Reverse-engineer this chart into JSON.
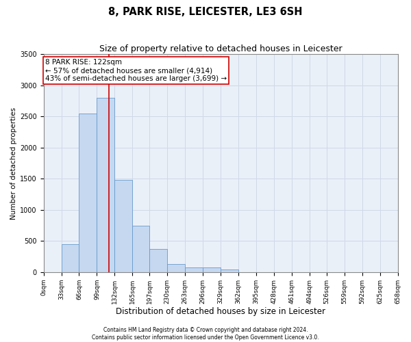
{
  "title1": "8, PARK RISE, LEICESTER, LE3 6SH",
  "title2": "Size of property relative to detached houses in Leicester",
  "xlabel": "Distribution of detached houses by size in Leicester",
  "ylabel": "Number of detached properties",
  "footnote1": "Contains HM Land Registry data © Crown copyright and database right 2024.",
  "footnote2": "Contains public sector information licensed under the Open Government Licence v3.0.",
  "bin_labels": [
    "0sqm",
    "33sqm",
    "66sqm",
    "99sqm",
    "132sqm",
    "165sqm",
    "197sqm",
    "230sqm",
    "263sqm",
    "296sqm",
    "329sqm",
    "362sqm",
    "395sqm",
    "428sqm",
    "461sqm",
    "494sqm",
    "526sqm",
    "559sqm",
    "592sqm",
    "625sqm",
    "658sqm"
  ],
  "bar_heights": [
    0,
    450,
    2550,
    2800,
    1480,
    750,
    370,
    130,
    75,
    75,
    40,
    0,
    0,
    0,
    0,
    0,
    0,
    0,
    0,
    0
  ],
  "bar_color": "#c5d8f0",
  "bar_edge_color": "#6699cc",
  "vertical_line_x": 122,
  "vertical_line_color": "#cc0000",
  "annotation_text": "8 PARK RISE: 122sqm\n← 57% of detached houses are smaller (4,914)\n43% of semi-detached houses are larger (3,699) →",
  "annotation_box_color": "#ffffff",
  "annotation_border_color": "#cc0000",
  "ylim": [
    0,
    3500
  ],
  "yticks": [
    0,
    500,
    1000,
    1500,
    2000,
    2500,
    3000,
    3500
  ],
  "bin_edges": [
    0,
    33,
    66,
    99,
    132,
    165,
    197,
    230,
    263,
    296,
    329,
    362,
    395,
    428,
    461,
    494,
    526,
    559,
    592,
    625,
    658
  ],
  "title1_fontsize": 10.5,
  "title2_fontsize": 9,
  "xlabel_fontsize": 8.5,
  "ylabel_fontsize": 7.5,
  "annotation_fontsize": 7.5,
  "tick_fontsize": 6.5,
  "ytick_fontsize": 7,
  "footnote_fontsize": 5.5,
  "grid_color": "#d0d8e8",
  "background_color": "#eaf0f8"
}
